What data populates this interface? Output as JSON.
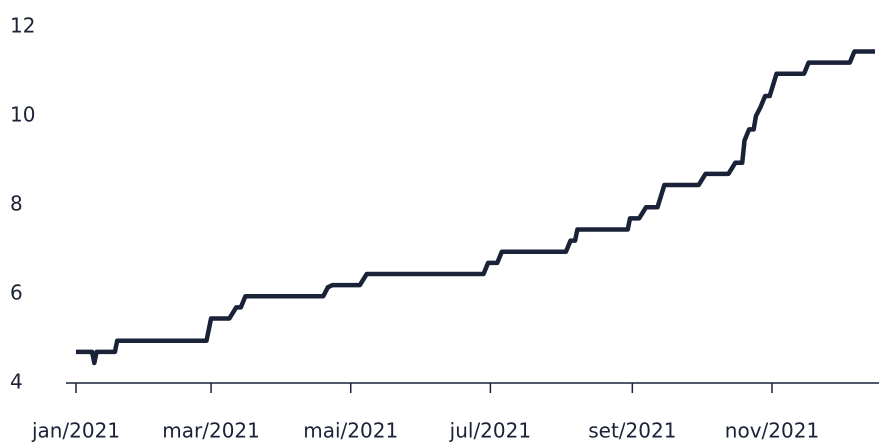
{
  "chart_data": {
    "type": "line",
    "x": [
      0,
      7,
      8,
      9,
      10,
      17,
      18,
      57,
      59,
      67,
      70,
      72,
      74,
      108,
      110,
      112,
      124,
      127,
      178,
      180,
      184,
      186,
      214,
      216,
      218,
      219,
      241,
      242,
      246,
      249,
      254,
      257,
      272,
      275,
      285,
      288,
      291,
      292,
      294,
      296,
      297,
      299,
      301,
      303,
      306,
      318,
      320,
      338,
      340,
      349
    ],
    "series": [
      {
        "color": "#1a2238",
        "values": [
          4.7,
          4.7,
          4.45,
          4.7,
          4.7,
          4.7,
          4.95,
          4.95,
          5.45,
          5.45,
          5.7,
          5.7,
          5.95,
          5.95,
          6.15,
          6.2,
          6.2,
          6.45,
          6.45,
          6.7,
          6.7,
          6.95,
          6.95,
          7.2,
          7.2,
          7.45,
          7.45,
          7.7,
          7.7,
          7.95,
          7.95,
          8.45,
          8.45,
          8.7,
          8.7,
          8.95,
          8.95,
          9.45,
          9.7,
          9.7,
          10,
          10.2,
          10.45,
          10.45,
          10.95,
          10.95,
          11.2,
          11.2,
          11.45,
          11.45
        ]
      }
    ],
    "xlim": [
      0,
      349
    ],
    "xticks": [
      {
        "value": 0,
        "label": "jan/2021"
      },
      {
        "value": 59,
        "label": "mar/2021"
      },
      {
        "value": 120,
        "label": "mai/2021"
      },
      {
        "value": 181,
        "label": "jul/2021"
      },
      {
        "value": 243,
        "label": "set/2021"
      },
      {
        "value": 304,
        "label": "nov/2021"
      }
    ],
    "ylim": [
      4,
      12
    ],
    "yticks": [
      4,
      6,
      8,
      10,
      12
    ]
  }
}
